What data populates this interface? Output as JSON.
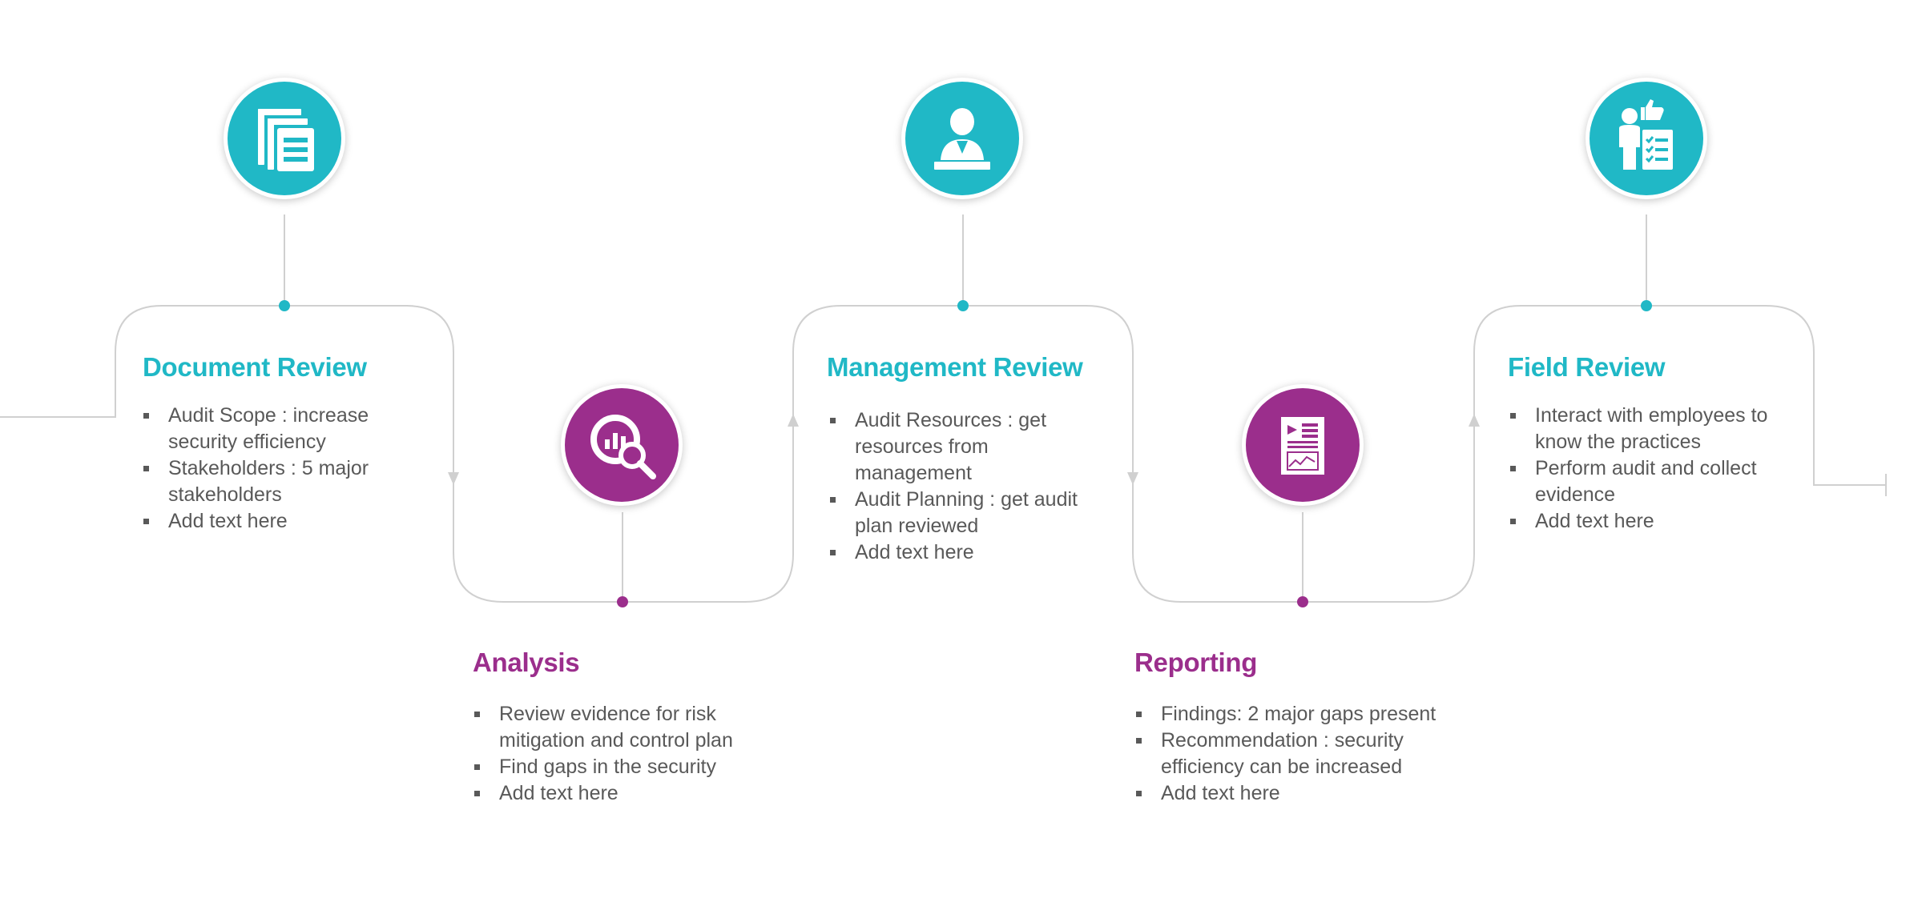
{
  "colors": {
    "teal": "#20b8c6",
    "purple": "#9b2e8c",
    "connector": "#d0d0d0",
    "text": "#595959"
  },
  "stages": [
    {
      "id": "document-review",
      "color": "teal",
      "icon": "document-stack-icon",
      "title": "Document Review",
      "points": [
        "Audit Scope : increase security efficiency",
        "Stakeholders : 5 major stakeholders",
        "Add text here"
      ]
    },
    {
      "id": "analysis",
      "color": "purple",
      "icon": "chart-magnifier-icon",
      "title": "Analysis",
      "points": [
        "Review evidence for risk mitigation and control plan",
        "Find gaps in the security",
        "Add text here"
      ]
    },
    {
      "id": "management-review",
      "color": "teal",
      "icon": "presenter-icon",
      "title": "Management Review",
      "points": [
        "Audit Resources : get resources from management",
        "Audit Planning : get audit plan reviewed",
        "Add text here"
      ]
    },
    {
      "id": "reporting",
      "color": "purple",
      "icon": "report-icon",
      "title": "Reporting",
      "points": [
        "Findings: 2 major gaps present",
        "Recommendation : security efficiency can be increased",
        "Add text here"
      ]
    },
    {
      "id": "field-review",
      "color": "teal",
      "icon": "employee-checklist-icon",
      "title": "Field Review",
      "points": [
        "Interact with employees to know the practices",
        "Perform audit and collect evidence",
        "Add text here"
      ]
    }
  ]
}
